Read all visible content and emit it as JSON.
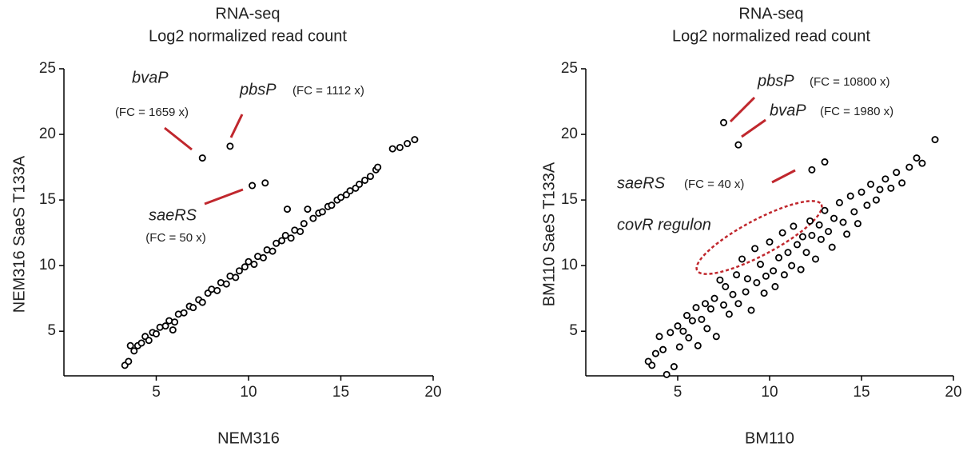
{
  "chart_data": [
    {
      "type": "scatter",
      "title": "RNA-seq",
      "subtitle": "Log2 normalized read count",
      "x_label": "NEM316",
      "y_label": "NEM316 SaeS T133A",
      "xlim": [
        0,
        20
      ],
      "ylim": [
        1.6,
        25
      ],
      "xticks": [
        5,
        10,
        15,
        20
      ],
      "yticks": [
        5,
        10,
        15,
        20,
        25
      ],
      "color": "#000000",
      "x": [
        3.3,
        3.5,
        3.6,
        3.8,
        4.0,
        4.2,
        4.4,
        4.6,
        4.8,
        5.0,
        5.2,
        5.5,
        5.7,
        6.0,
        6.2,
        6.5,
        6.8,
        7.0,
        7.3,
        7.5,
        7.8,
        8.0,
        8.3,
        8.5,
        8.8,
        9.0,
        9.3,
        9.5,
        9.8,
        10.0,
        10.3,
        10.5,
        10.8,
        11.0,
        11.3,
        11.5,
        11.8,
        12.0,
        12.3,
        12.5,
        12.8,
        13.0,
        13.2,
        13.5,
        13.8,
        14.0,
        14.3,
        14.5,
        14.8,
        15.0,
        15.3,
        15.5,
        15.8,
        16.0,
        16.3,
        16.6,
        16.9,
        17.0,
        17.8,
        18.2,
        18.6,
        19.0,
        7.5,
        9.0,
        10.2,
        10.9,
        12.1,
        5.9
      ],
      "y": [
        2.4,
        2.7,
        3.9,
        3.5,
        3.9,
        4.1,
        4.6,
        4.3,
        4.9,
        4.8,
        5.3,
        5.4,
        5.8,
        5.7,
        6.3,
        6.4,
        6.9,
        6.8,
        7.4,
        7.2,
        7.9,
        8.2,
        8.1,
        8.7,
        8.6,
        9.2,
        9.1,
        9.6,
        9.9,
        10.3,
        10.1,
        10.7,
        10.6,
        11.2,
        11.1,
        11.7,
        11.9,
        12.3,
        12.1,
        12.7,
        12.6,
        13.2,
        14.3,
        13.6,
        14.0,
        14.1,
        14.5,
        14.6,
        15.0,
        15.2,
        15.4,
        15.7,
        15.9,
        16.2,
        16.5,
        16.8,
        17.3,
        17.5,
        18.9,
        19.0,
        19.3,
        19.6,
        18.2,
        19.1,
        16.1,
        16.3,
        14.3,
        5.1
      ],
      "annotations": [
        {
          "gene": "bvaP",
          "fc": "(FC = 1659 x)"
        },
        {
          "gene": "pbsP",
          "fc": "(FC = 1112 x)"
        },
        {
          "gene": "saeRS",
          "fc": "(FC = 50 x)"
        }
      ]
    },
    {
      "type": "scatter",
      "title": "RNA-seq",
      "subtitle": "Log2 normalized read count",
      "x_label": "BM110",
      "y_label": "BM110 SaeS T133A",
      "xlim": [
        0,
        20
      ],
      "ylim": [
        1.6,
        25
      ],
      "xticks": [
        5,
        10,
        15,
        20
      ],
      "yticks": [
        5,
        10,
        15,
        20,
        25
      ],
      "color": "#000000",
      "x": [
        3.4,
        3.6,
        3.8,
        4.0,
        4.2,
        4.4,
        4.6,
        4.8,
        5.0,
        5.1,
        5.3,
        5.5,
        5.6,
        5.8,
        6.0,
        6.1,
        6.3,
        6.5,
        6.6,
        6.8,
        7.0,
        7.1,
        7.3,
        7.5,
        7.6,
        7.8,
        8.0,
        8.2,
        8.3,
        8.5,
        8.7,
        8.8,
        9.0,
        9.2,
        9.3,
        9.5,
        9.7,
        9.8,
        10.0,
        10.2,
        10.3,
        10.5,
        10.7,
        10.8,
        11.0,
        11.2,
        11.3,
        11.5,
        11.7,
        11.8,
        12.0,
        12.2,
        12.3,
        12.5,
        12.7,
        12.8,
        13.0,
        13.2,
        13.4,
        13.5,
        13.8,
        14.0,
        14.2,
        14.4,
        14.6,
        14.8,
        15.0,
        15.3,
        15.5,
        15.8,
        16.0,
        16.3,
        16.6,
        16.9,
        17.2,
        17.6,
        18.0,
        18.3,
        19.0,
        7.5,
        8.3,
        12.3,
        13.0
      ],
      "y": [
        2.7,
        2.4,
        3.3,
        4.6,
        3.6,
        1.7,
        4.9,
        2.3,
        5.4,
        3.8,
        5.0,
        6.2,
        4.5,
        5.8,
        6.8,
        3.9,
        5.9,
        7.1,
        5.2,
        6.7,
        7.5,
        4.6,
        8.9,
        7.0,
        8.4,
        6.3,
        7.8,
        9.3,
        7.1,
        10.5,
        8.0,
        9.0,
        6.6,
        11.3,
        8.7,
        10.1,
        7.9,
        9.2,
        11.8,
        9.6,
        8.4,
        10.6,
        12.5,
        9.3,
        11.0,
        10.0,
        13.0,
        11.6,
        9.7,
        12.2,
        11.0,
        13.4,
        12.3,
        10.5,
        13.1,
        12.0,
        14.2,
        12.6,
        11.4,
        13.6,
        14.8,
        13.3,
        12.4,
        15.3,
        14.1,
        13.2,
        15.6,
        14.6,
        16.2,
        15.0,
        15.8,
        16.6,
        15.9,
        17.1,
        16.3,
        17.5,
        18.2,
        17.8,
        19.6,
        20.9,
        19.2,
        17.3,
        17.9
      ],
      "annotations": [
        {
          "gene": "pbsP",
          "fc": "(FC = 10800 x)"
        },
        {
          "gene": "bvaP",
          "fc": "(FC = 1980 x)"
        },
        {
          "gene": "saeRS",
          "fc": "(FC = 40 x)"
        },
        {
          "gene": "covR regulon"
        }
      ]
    }
  ]
}
